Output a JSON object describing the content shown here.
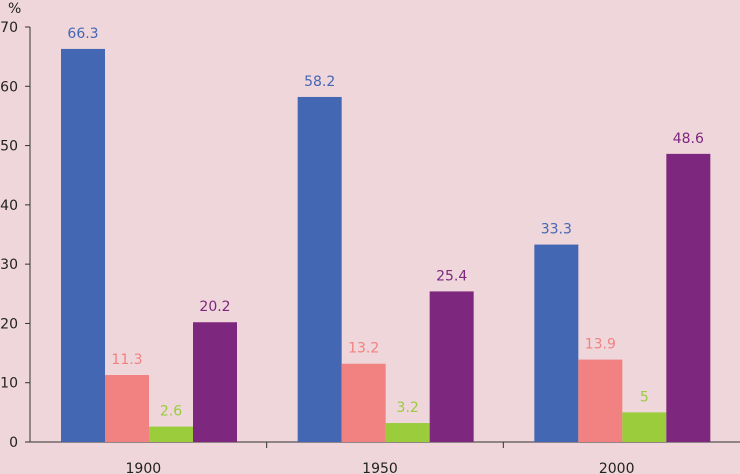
{
  "chart_data": {
    "type": "bar",
    "title": "",
    "xlabel": "",
    "ylabel": "%",
    "ylim": [
      0,
      70
    ],
    "yticks": [
      0,
      10,
      20,
      30,
      40,
      50,
      60,
      70
    ],
    "grid": false,
    "legend": "none",
    "categories": [
      "1900",
      "1950",
      "2000"
    ],
    "series": [
      {
        "color": "#4467b4",
        "values": [
          66.3,
          58.2,
          33.3
        ]
      },
      {
        "color": "#f28181",
        "values": [
          11.3,
          13.2,
          13.9
        ]
      },
      {
        "color": "#9acc3c",
        "values": [
          2.6,
          3.2,
          5
        ]
      },
      {
        "color": "#7e277e",
        "values": [
          20.2,
          25.4,
          48.6
        ]
      }
    ],
    "data_labels": [
      [
        "66.3",
        "58.2",
        "33.3"
      ],
      [
        "11.3",
        "13.2",
        "13.9"
      ],
      [
        "2.6",
        "3.2",
        "5"
      ],
      [
        "20.2",
        "25.4",
        "48.6"
      ]
    ]
  }
}
